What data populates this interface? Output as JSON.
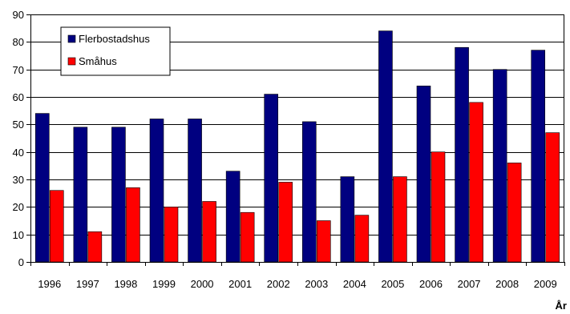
{
  "chart_data": {
    "type": "bar",
    "title": "",
    "xlabel": "År",
    "ylabel": "",
    "ylim": [
      0,
      90
    ],
    "yticks": [
      0,
      10,
      20,
      30,
      40,
      50,
      60,
      70,
      80,
      90
    ],
    "grid": true,
    "legend_position": "top-left",
    "categories": [
      "1996",
      "1997",
      "1998",
      "1999",
      "2000",
      "2001",
      "2002",
      "2003",
      "2004",
      "2005",
      "2006",
      "2007",
      "2008",
      "2009"
    ],
    "series": [
      {
        "name": "Flerbostadshus",
        "color": "#000080",
        "values": [
          54,
          49,
          49,
          52,
          52,
          33,
          61,
          51,
          31,
          84,
          64,
          78,
          70,
          77
        ]
      },
      {
        "name": "Småhus",
        "color": "#ff0000",
        "values": [
          26,
          11,
          27,
          20,
          22,
          18,
          29,
          15,
          17,
          31,
          40,
          58,
          36,
          47
        ]
      }
    ]
  }
}
